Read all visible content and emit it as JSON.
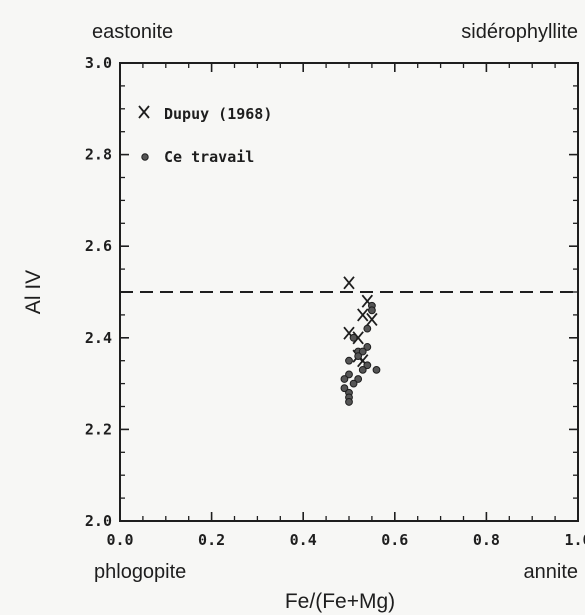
{
  "corner_labels": {
    "top_left": "eastonite",
    "top_right": "sidérophyllite",
    "bottom_left": "phlogopite",
    "bottom_right": "annite"
  },
  "colors": {
    "ink": "#1e1e1e",
    "background": "#f7f7f5",
    "point_fill": "#555555"
  },
  "chart_data": {
    "type": "scatter",
    "xlabel": "Fe/(Fe+Mg)",
    "ylabel": "Al IV",
    "xlim": [
      0.0,
      1.0
    ],
    "ylim": [
      2.0,
      3.0
    ],
    "xticks": [
      "0.0",
      "0.2",
      "0.4",
      "0.6",
      "0.8",
      "1.0"
    ],
    "yticks": [
      "2.0",
      "2.2",
      "2.4",
      "2.6",
      "2.8",
      "3.0"
    ],
    "grid": false,
    "legend_position": "top-left",
    "reference_line": {
      "y": 2.5,
      "style": "dashed"
    },
    "series": [
      {
        "name": "Dupuy (1968)",
        "marker": "x",
        "points": [
          [
            0.5,
            2.52
          ],
          [
            0.54,
            2.48
          ],
          [
            0.53,
            2.45
          ],
          [
            0.55,
            2.44
          ],
          [
            0.5,
            2.41
          ],
          [
            0.52,
            2.4
          ],
          [
            0.52,
            2.36
          ],
          [
            0.53,
            2.35
          ]
        ]
      },
      {
        "name": "Ce travail",
        "marker": "circle",
        "points": [
          [
            0.55,
            2.47
          ],
          [
            0.55,
            2.46
          ],
          [
            0.54,
            2.42
          ],
          [
            0.51,
            2.4
          ],
          [
            0.54,
            2.38
          ],
          [
            0.52,
            2.37
          ],
          [
            0.53,
            2.37
          ],
          [
            0.52,
            2.36
          ],
          [
            0.5,
            2.35
          ],
          [
            0.54,
            2.34
          ],
          [
            0.53,
            2.33
          ],
          [
            0.56,
            2.33
          ],
          [
            0.5,
            2.32
          ],
          [
            0.52,
            2.31
          ],
          [
            0.49,
            2.31
          ],
          [
            0.51,
            2.3
          ],
          [
            0.49,
            2.29
          ],
          [
            0.5,
            2.28
          ],
          [
            0.5,
            2.27
          ],
          [
            0.5,
            2.26
          ]
        ]
      }
    ]
  }
}
